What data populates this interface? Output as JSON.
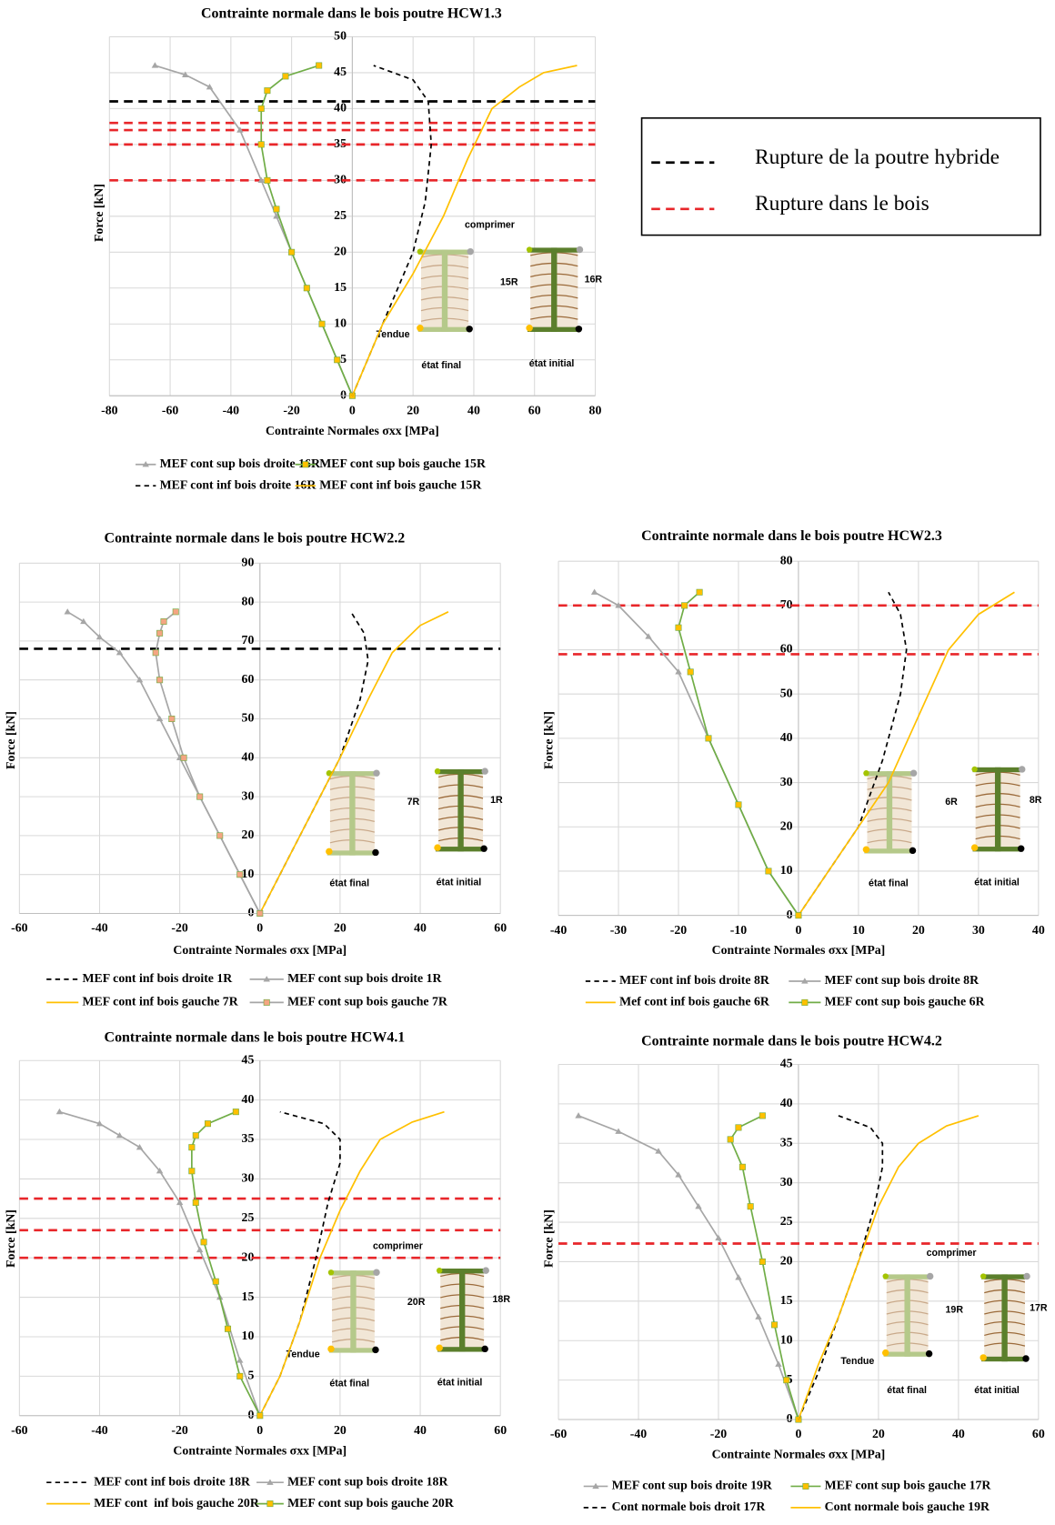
{
  "chart_data": [
    {
      "type": "line",
      "title": "Contrainte normale dans le bois poutre HCW1.3",
      "xlabel": "Contrainte Normales σxx [MPa]",
      "ylabel": "Force [kN]",
      "xlim": [
        -80,
        80
      ],
      "xticks": [
        -80,
        -60,
        -40,
        -20,
        0,
        20,
        40,
        60,
        80
      ],
      "ylim": [
        0,
        50
      ],
      "yticks": [
        0,
        5,
        10,
        15,
        20,
        25,
        30,
        35,
        40,
        45,
        50
      ],
      "grid": true,
      "series": [
        {
          "name": "MEF cont sup bois droite 16R",
          "color": "#a6a6a6",
          "marker": "triangle",
          "marker_color": "#a6a6a6",
          "x": [
            0,
            -5,
            -10,
            -15,
            -20,
            -25,
            -30,
            -37,
            -47,
            -55,
            -65
          ],
          "values": [
            0,
            5,
            10,
            15,
            20,
            25,
            30,
            37,
            43,
            44.7,
            46
          ]
        },
        {
          "name": "MEF cont sup bois gauche 15R",
          "color": "#70ad47",
          "marker": "square",
          "marker_color": "#ffc000",
          "x": [
            0,
            -5,
            -10,
            -15,
            -20,
            -25,
            -28,
            -30,
            -30,
            -28,
            -22,
            -11
          ],
          "values": [
            0,
            5,
            10,
            15,
            20,
            26,
            30,
            35,
            40,
            42.5,
            44.5,
            46
          ]
        },
        {
          "name": "MEF cont inf bois droite 16R",
          "color": "#000000",
          "dash": true,
          "x": [
            0,
            5,
            10,
            15,
            20,
            24,
            26,
            25,
            20,
            7
          ],
          "values": [
            0,
            5,
            10,
            15,
            20,
            27,
            35,
            41,
            44,
            46
          ]
        },
        {
          "name": "MEF cont inf bois gauche 15R",
          "color": "#ffc000",
          "x": [
            0,
            10,
            20,
            30,
            38,
            46,
            55,
            63,
            74
          ],
          "values": [
            0,
            10,
            17,
            25,
            33,
            40,
            43,
            45,
            46
          ]
        }
      ],
      "hlines": [
        {
          "value": 41,
          "color": "#000000"
        },
        {
          "value": 38,
          "color": "#e8262a"
        },
        {
          "value": 37,
          "color": "#e8262a"
        },
        {
          "value": 35,
          "color": "#e8262a"
        },
        {
          "value": 30,
          "color": "#e8262a"
        }
      ],
      "legend_box": [
        {
          "name": "Rupture de la poutre hybride",
          "color": "#000000"
        },
        {
          "name": "Rupture dans le bois",
          "color": "#e8262a"
        }
      ],
      "annotations": [
        "comprimer",
        "Tendue",
        "15R",
        "16R",
        "état final",
        "état initial"
      ]
    },
    {
      "type": "line",
      "title": "Contrainte normale dans le bois poutre HCW2.2",
      "xlabel": "Contrainte Normales σxx [MPa]",
      "ylabel": "Force [kN]",
      "xlim": [
        -60,
        60
      ],
      "xticks": [
        -60,
        -40,
        -20,
        0,
        20,
        40,
        60
      ],
      "ylim": [
        0,
        90
      ],
      "yticks": [
        0,
        10,
        20,
        30,
        40,
        50,
        60,
        70,
        80,
        90
      ],
      "grid": true,
      "series": [
        {
          "name": "MEF cont inf bois droite 1R",
          "color": "#000000",
          "dash": true,
          "x": [
            0,
            10,
            20,
            25,
            27,
            26,
            23
          ],
          "values": [
            0,
            20,
            40,
            55,
            65,
            72,
            77
          ]
        },
        {
          "name": "MEF cont sup bois droite 1R",
          "color": "#a6a6a6",
          "marker": "triangle",
          "marker_color": "#a6a6a6",
          "x": [
            0,
            -5,
            -10,
            -15,
            -20,
            -25,
            -30,
            -35,
            -40,
            -44,
            -48
          ],
          "values": [
            0,
            10,
            20,
            30,
            40,
            50,
            60,
            67,
            71,
            75,
            77.5
          ]
        },
        {
          "name": "MEF cont inf bois gauche 7R",
          "color": "#ffc000",
          "x": [
            0,
            10,
            20,
            27,
            33,
            40,
            47
          ],
          "values": [
            0,
            20,
            40,
            55,
            67,
            74,
            77.5
          ]
        },
        {
          "name": "MEF cont sup bois gauche 7R",
          "color": "#a6a6a6",
          "marker": "square",
          "marker_color": "#f4a582",
          "x": [
            0,
            -5,
            -10,
            -15,
            -19,
            -22,
            -25,
            -26,
            -25,
            -24,
            -21
          ],
          "values": [
            0,
            10,
            20,
            30,
            40,
            50,
            60,
            67,
            72,
            75,
            77.5
          ]
        }
      ],
      "hlines": [
        {
          "value": 68,
          "color": "#000000"
        }
      ],
      "annotations": [
        "7R",
        "1R",
        "état final",
        "état initial"
      ]
    },
    {
      "type": "line",
      "title": "Contrainte normale dans le bois poutre HCW2.3",
      "xlabel": "Contrainte Normales σxx [MPa]",
      "ylabel": "Force [kN]",
      "xlim": [
        -40,
        40
      ],
      "xticks": [
        -40,
        -30,
        -20,
        -10,
        0,
        10,
        20,
        30,
        40
      ],
      "ylim": [
        0,
        80
      ],
      "yticks": [
        0,
        10,
        20,
        30,
        40,
        50,
        60,
        70,
        80
      ],
      "grid": true,
      "series": [
        {
          "name": "MEF cont inf bois droite 8R",
          "color": "#000000",
          "dash": true,
          "x": [
            0,
            5,
            10,
            14,
            17,
            18,
            17,
            15
          ],
          "values": [
            0,
            10,
            20,
            35,
            50,
            60,
            68,
            73
          ]
        },
        {
          "name": "MEF cont sup bois droite 8R",
          "color": "#a6a6a6",
          "marker": "triangle",
          "marker_color": "#a6a6a6",
          "x": [
            0,
            -5,
            -10,
            -15,
            -20,
            -25,
            -30,
            -34
          ],
          "values": [
            0,
            10,
            25,
            40,
            55,
            63,
            70,
            73
          ]
        },
        {
          "name": "Mef cont inf bois gauche 6R",
          "color": "#ffc000",
          "x": [
            0,
            5,
            10,
            15,
            20,
            25,
            30,
            36
          ],
          "values": [
            0,
            10,
            20,
            30,
            45,
            60,
            68,
            73
          ]
        },
        {
          "name": "MEF cont sup bois gauche 6R",
          "color": "#70ad47",
          "marker": "square",
          "marker_color": "#ffc000",
          "x": [
            0,
            -5,
            -10,
            -15,
            -18,
            -20,
            -19,
            -16.5
          ],
          "values": [
            0,
            10,
            25,
            40,
            55,
            65,
            70,
            73
          ]
        }
      ],
      "hlines": [
        {
          "value": 70,
          "color": "#e8262a"
        },
        {
          "value": 59,
          "color": "#e8262a"
        }
      ],
      "annotations": [
        "6R",
        "8R",
        "état final",
        "état initial"
      ]
    },
    {
      "type": "line",
      "title": "Contrainte normale dans le bois poutre HCW4.1",
      "xlabel": "Contrainte Normales σxx [MPa]",
      "ylabel": "Force [kN]",
      "xlim": [
        -60,
        60
      ],
      "xticks": [
        -60,
        -40,
        -20,
        0,
        20,
        40,
        60
      ],
      "ylim": [
        0,
        45
      ],
      "yticks": [
        0,
        5,
        10,
        15,
        20,
        25,
        30,
        35,
        40,
        45
      ],
      "grid": true,
      "series": [
        {
          "name": "MEF cont inf bois droite 18R",
          "color": "#000000",
          "dash": true,
          "x": [
            0,
            5,
            10,
            14,
            17,
            20,
            20,
            16,
            5
          ],
          "values": [
            0,
            5,
            12,
            20,
            27,
            32,
            35,
            37,
            38.5
          ]
        },
        {
          "name": "MEF cont sup bois droite 18R",
          "color": "#a6a6a6",
          "marker": "triangle",
          "marker_color": "#a6a6a6",
          "x": [
            0,
            -5,
            -10,
            -15,
            -20,
            -25,
            -30,
            -35,
            -40,
            -50
          ],
          "values": [
            0,
            7,
            15,
            21,
            27,
            31,
            34,
            35.5,
            37,
            38.5
          ]
        },
        {
          "name": "MEF cont  inf bois gauche 20R",
          "color": "#ffc000",
          "x": [
            0,
            5,
            10,
            15,
            20,
            25,
            30,
            38,
            46
          ],
          "values": [
            0,
            5,
            12,
            20,
            26,
            31,
            35,
            37.2,
            38.5
          ]
        },
        {
          "name": "MEF cont sup bois gauche 20R",
          "color": "#70ad47",
          "marker": "square",
          "marker_color": "#ffc000",
          "x": [
            0,
            -5,
            -8,
            -11,
            -14,
            -16,
            -17,
            -17,
            -16,
            -13,
            -6
          ],
          "values": [
            0,
            5,
            11,
            17,
            22,
            27,
            31,
            34,
            35.5,
            37,
            38.5
          ]
        }
      ],
      "hlines": [
        {
          "value": 27.5,
          "color": "#e8262a"
        },
        {
          "value": 23.5,
          "color": "#e8262a"
        },
        {
          "value": 20,
          "color": "#e8262a"
        }
      ],
      "annotations": [
        "comprimer",
        "20R",
        "18R",
        "Tendue",
        "état final",
        "état initial"
      ]
    },
    {
      "type": "line",
      "title": "Contrainte normale dans le bois poutre HCW4.2",
      "xlabel": "Contrainte Normales σxx [MPa]",
      "ylabel": "Force [kN]",
      "xlim": [
        -60,
        60
      ],
      "xticks": [
        -60,
        -40,
        -20,
        0,
        20,
        40,
        60
      ],
      "ylim": [
        0,
        45
      ],
      "yticks": [
        0,
        5,
        10,
        15,
        20,
        25,
        30,
        35,
        40,
        45
      ],
      "grid": true,
      "series": [
        {
          "name": "MEF cont sup bois droite 19R",
          "color": "#a6a6a6",
          "marker": "triangle",
          "marker_color": "#a6a6a6",
          "x": [
            0,
            -5,
            -10,
            -15,
            -20,
            -25,
            -30,
            -35,
            -45,
            -55
          ],
          "values": [
            0,
            7,
            13,
            18,
            23,
            27,
            31,
            34,
            36.5,
            38.5
          ]
        },
        {
          "name": "MEF cont sup bois gauche 17R",
          "color": "#70ad47",
          "marker": "square",
          "marker_color": "#ffc000",
          "x": [
            0,
            -3,
            -6,
            -9,
            -12,
            -14,
            -17,
            -15,
            -9
          ],
          "values": [
            0,
            5,
            12,
            20,
            27,
            32,
            35.5,
            37,
            38.5
          ]
        },
        {
          "name": "Cont normale bois droit 17R",
          "color": "#000000",
          "dash": true,
          "x": [
            0,
            5,
            10,
            15,
            19,
            21,
            21,
            18,
            10
          ],
          "values": [
            0,
            6,
            13,
            20,
            27,
            32,
            35,
            37,
            38.5
          ]
        },
        {
          "name": "Cont normale bois gauche 19R",
          "color": "#ffc000",
          "x": [
            0,
            5,
            10,
            15,
            20,
            25,
            30,
            37,
            45
          ],
          "values": [
            0,
            7,
            13,
            20,
            27,
            32,
            35,
            37.2,
            38.5
          ]
        }
      ],
      "hlines": [
        {
          "value": 22.3,
          "color": "#e8262a"
        }
      ],
      "annotations": [
        "comprimer",
        "19R",
        "17R",
        "Tendue",
        "état final",
        "état initial"
      ]
    }
  ]
}
